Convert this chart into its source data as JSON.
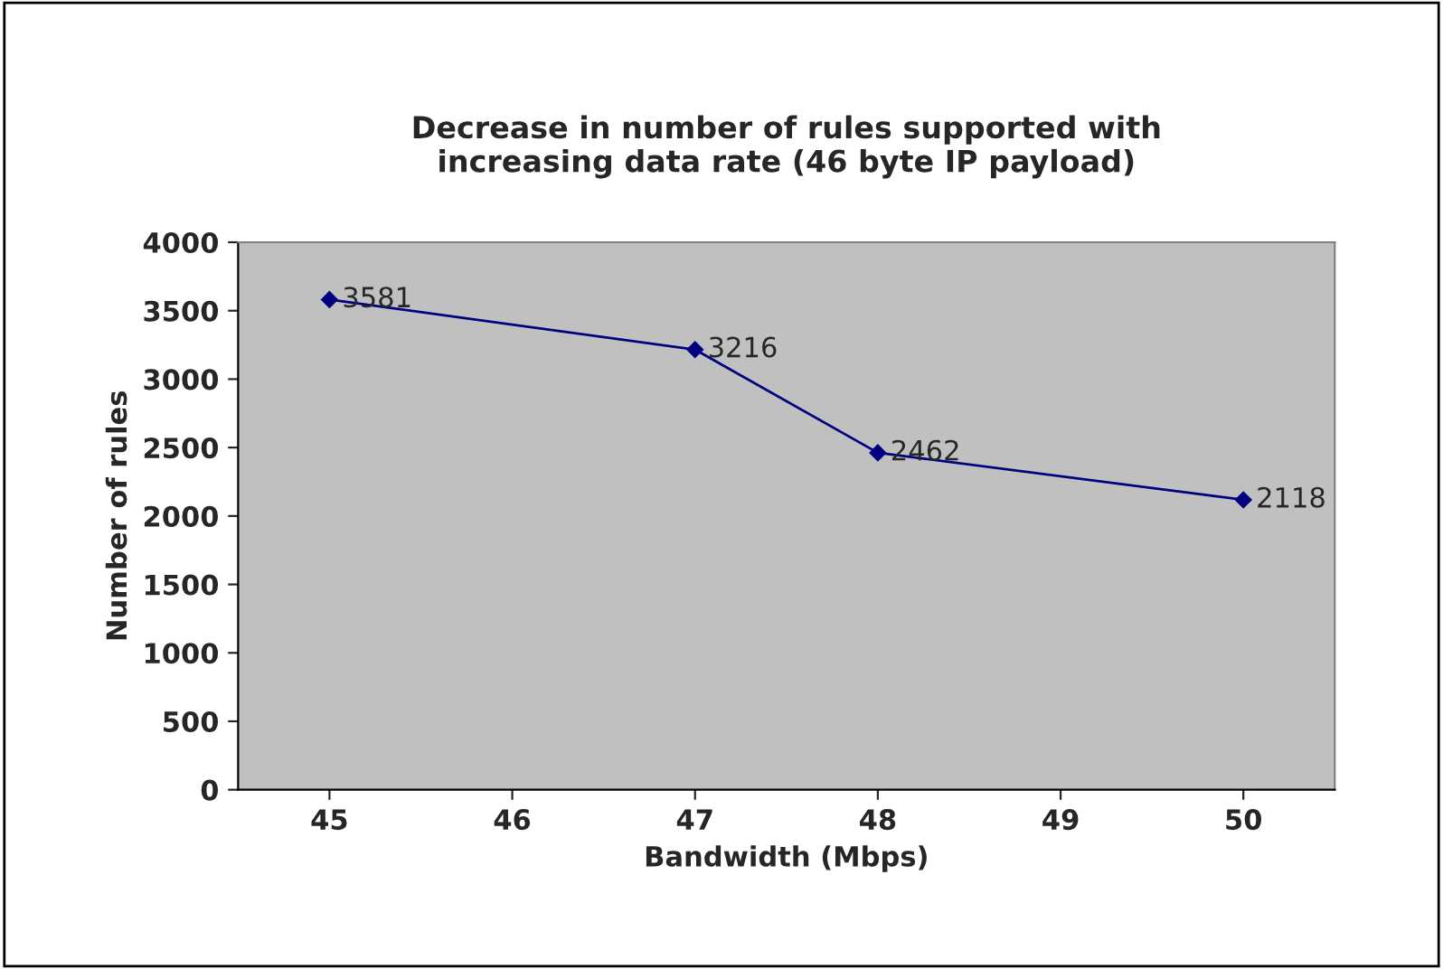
{
  "chart_data": {
    "type": "line",
    "title": "Decrease in number of rules supported with\nincreasing data rate (46 byte IP payload)",
    "xlabel": "Bandwidth (Mbps)",
    "ylabel": "Number of rules",
    "x": [
      45,
      47,
      48,
      50
    ],
    "series": [
      {
        "color": "#000080",
        "values": [
          3581,
          3216,
          2462,
          2118
        ]
      }
    ],
    "xlim": [
      44.5,
      50.5
    ],
    "xticks": [
      45,
      46,
      47,
      48,
      49,
      50
    ],
    "ylim": [
      0,
      4000
    ],
    "yticks": [
      0,
      500,
      1000,
      1500,
      2000,
      2500,
      3000,
      3500,
      4000
    ],
    "data_labels": true,
    "grid": false,
    "legend": false,
    "marker": "diamond",
    "line_style": "solid"
  }
}
